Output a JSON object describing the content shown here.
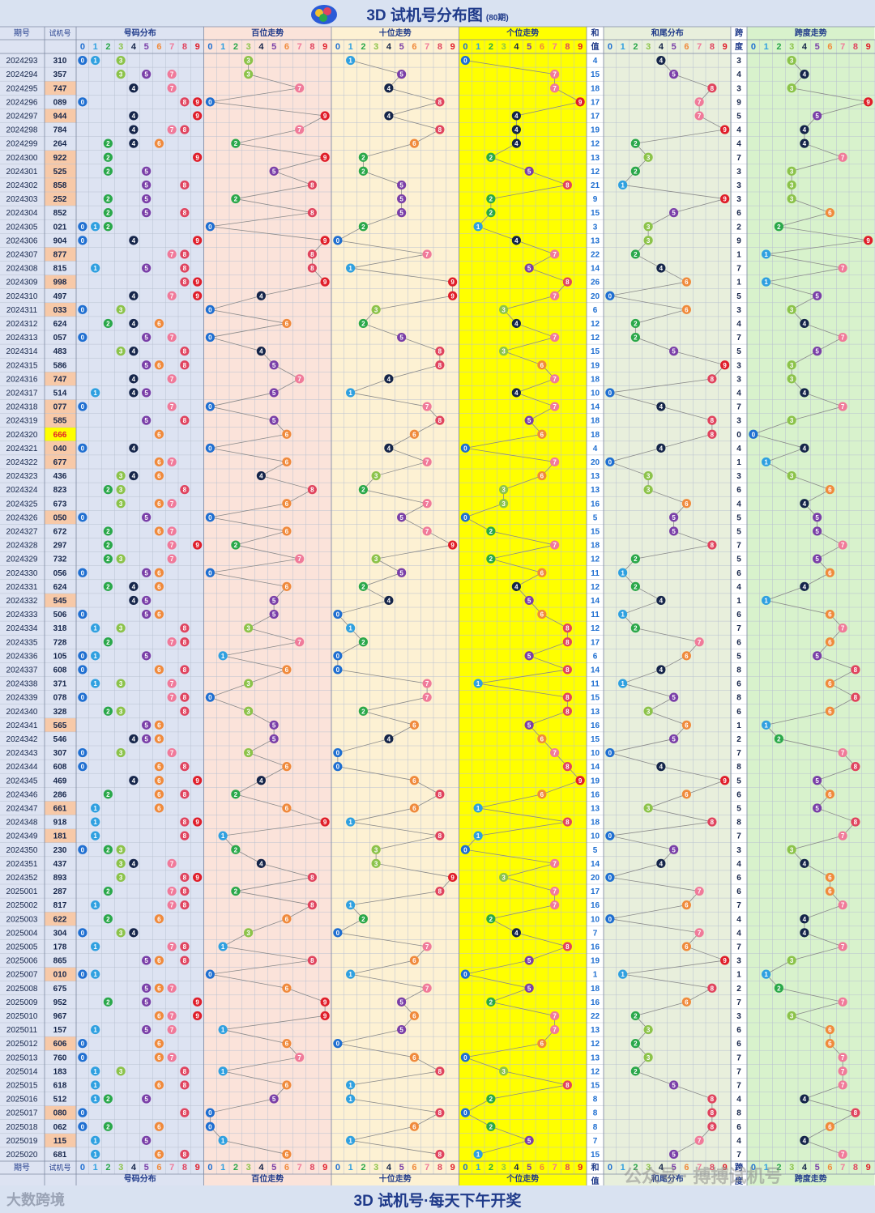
{
  "header": {
    "title": "3D 试机号分布图",
    "subtitle": "(80期)"
  },
  "footer": {
    "slogan": "3D 试机号·每天下午开奖",
    "brand": "大数跨境",
    "watermark": "公众号 · 搏搏试机号"
  },
  "columns": {
    "issue": "期号",
    "trial": "试机号",
    "distribution": "号码分布",
    "hundreds": "百位走势",
    "tens": "十位走势",
    "units": "个位走势",
    "sum_top": "和",
    "sum_bottom": "值",
    "sum_tail": "和尾分布",
    "span_top": "跨",
    "span_bottom": "度",
    "span_trend": "跨度走势"
  },
  "colors": {
    "d0": "#1f6fd1",
    "d1": "#2fa0e0",
    "d2": "#2aa84a",
    "d3": "#8cc34a",
    "d4": "#15254a",
    "d5": "#7a3fa8",
    "d6": "#f08a3c",
    "d7": "#f07a9a",
    "d8": "#e0445f",
    "d9": "#e01e2a",
    "bg_dist": "#dde3f2",
    "bg_h": "#fbe3da",
    "bg_t": "#fdf1d3",
    "bg_u": "#ffff00",
    "bg_sumtail": "#e8efdc",
    "bg_span": "#d8f2cc",
    "highlight": "#f7c9a8"
  },
  "chart_data": {
    "type": "table",
    "title": "3D 试机号分布图",
    "digits": [
      "0",
      "1",
      "2",
      "3",
      "4",
      "5",
      "6",
      "7",
      "8",
      "9"
    ],
    "rows": [
      {
        "issue": "2024293",
        "trial": "310",
        "sum": 4
      },
      {
        "issue": "2024294",
        "trial": "357",
        "sum": 15
      },
      {
        "issue": "2024295",
        "trial": "747",
        "sum": 18
      },
      {
        "issue": "2024296",
        "trial": "089",
        "sum": 17
      },
      {
        "issue": "2024297",
        "trial": "944",
        "sum": 17
      },
      {
        "issue": "2024298",
        "trial": "784",
        "sum": 19
      },
      {
        "issue": "2024299",
        "trial": "264",
        "sum": 12
      },
      {
        "issue": "2024300",
        "trial": "922",
        "sum": 13
      },
      {
        "issue": "2024301",
        "trial": "525",
        "sum": 12
      },
      {
        "issue": "2024302",
        "trial": "858",
        "sum": 21
      },
      {
        "issue": "2024303",
        "trial": "252",
        "sum": 9
      },
      {
        "issue": "2024304",
        "trial": "852",
        "sum": 15
      },
      {
        "issue": "2024305",
        "trial": "021",
        "sum": 3
      },
      {
        "issue": "2024306",
        "trial": "904",
        "sum": 13
      },
      {
        "issue": "2024307",
        "trial": "877",
        "sum": 22
      },
      {
        "issue": "2024308",
        "trial": "815",
        "sum": 14
      },
      {
        "issue": "2024309",
        "trial": "998",
        "sum": 26
      },
      {
        "issue": "2024310",
        "trial": "497",
        "sum": 20
      },
      {
        "issue": "2024311",
        "trial": "033",
        "sum": 6
      },
      {
        "issue": "2024312",
        "trial": "624",
        "sum": 12
      },
      {
        "issue": "2024313",
        "trial": "057",
        "sum": 12
      },
      {
        "issue": "2024314",
        "trial": "483",
        "sum": 15
      },
      {
        "issue": "2024315",
        "trial": "586",
        "sum": 19
      },
      {
        "issue": "2024316",
        "trial": "747",
        "sum": 18
      },
      {
        "issue": "2024317",
        "trial": "514",
        "sum": 10
      },
      {
        "issue": "2024318",
        "trial": "077",
        "sum": 14
      },
      {
        "issue": "2024319",
        "trial": "585",
        "sum": 18
      },
      {
        "issue": "2024320",
        "trial": "666",
        "sum": 18
      },
      {
        "issue": "2024321",
        "trial": "040",
        "sum": 4
      },
      {
        "issue": "2024322",
        "trial": "677",
        "sum": 20
      },
      {
        "issue": "2024323",
        "trial": "436",
        "sum": 13
      },
      {
        "issue": "2024324",
        "trial": "823",
        "sum": 13
      },
      {
        "issue": "2024325",
        "trial": "673",
        "sum": 16
      },
      {
        "issue": "2024326",
        "trial": "050",
        "sum": 5
      },
      {
        "issue": "2024327",
        "trial": "672",
        "sum": 15
      },
      {
        "issue": "2024328",
        "trial": "297",
        "sum": 18
      },
      {
        "issue": "2024329",
        "trial": "732",
        "sum": 12
      },
      {
        "issue": "2024330",
        "trial": "056",
        "sum": 11
      },
      {
        "issue": "2024331",
        "trial": "624",
        "sum": 12
      },
      {
        "issue": "2024332",
        "trial": "545",
        "sum": 14
      },
      {
        "issue": "2024333",
        "trial": "506",
        "sum": 11
      },
      {
        "issue": "2024334",
        "trial": "318",
        "sum": 12
      },
      {
        "issue": "2024335",
        "trial": "728",
        "sum": 17
      },
      {
        "issue": "2024336",
        "trial": "105",
        "sum": 6
      },
      {
        "issue": "2024337",
        "trial": "608",
        "sum": 14
      },
      {
        "issue": "2024338",
        "trial": "371",
        "sum": 11
      },
      {
        "issue": "2024339",
        "trial": "078",
        "sum": 15
      },
      {
        "issue": "2024340",
        "trial": "328",
        "sum": 13
      },
      {
        "issue": "2024341",
        "trial": "565",
        "sum": 16
      },
      {
        "issue": "2024342",
        "trial": "546",
        "sum": 15
      },
      {
        "issue": "2024343",
        "trial": "307",
        "sum": 10
      },
      {
        "issue": "2024344",
        "trial": "608",
        "sum": 14
      },
      {
        "issue": "2024345",
        "trial": "469",
        "sum": 19
      },
      {
        "issue": "2024346",
        "trial": "286",
        "sum": 16
      },
      {
        "issue": "2024347",
        "trial": "661",
        "sum": 13
      },
      {
        "issue": "2024348",
        "trial": "918",
        "sum": 18
      },
      {
        "issue": "2024349",
        "trial": "181",
        "sum": 10
      },
      {
        "issue": "2024350",
        "trial": "230",
        "sum": 5
      },
      {
        "issue": "2024351",
        "trial": "437",
        "sum": 14
      },
      {
        "issue": "2024352",
        "trial": "893",
        "sum": 20
      },
      {
        "issue": "2025001",
        "trial": "287",
        "sum": 17
      },
      {
        "issue": "2025002",
        "trial": "817",
        "sum": 16
      },
      {
        "issue": "2025003",
        "trial": "622",
        "sum": 10
      },
      {
        "issue": "2025004",
        "trial": "304",
        "sum": 7
      },
      {
        "issue": "2025005",
        "trial": "178",
        "sum": 16
      },
      {
        "issue": "2025006",
        "trial": "865",
        "sum": 19
      },
      {
        "issue": "2025007",
        "trial": "010",
        "sum": 1
      },
      {
        "issue": "2025008",
        "trial": "675",
        "sum": 18
      },
      {
        "issue": "2025009",
        "trial": "952",
        "sum": 16
      },
      {
        "issue": "2025010",
        "trial": "967",
        "sum": 22
      },
      {
        "issue": "2025011",
        "trial": "157",
        "sum": 13
      },
      {
        "issue": "2025012",
        "trial": "606",
        "sum": 12
      },
      {
        "issue": "2025013",
        "trial": "760",
        "sum": 13
      },
      {
        "issue": "2025014",
        "trial": "183",
        "sum": 12
      },
      {
        "issue": "2025015",
        "trial": "618",
        "sum": 15
      },
      {
        "issue": "2025016",
        "trial": "512",
        "sum": 8
      },
      {
        "issue": "2025017",
        "trial": "080",
        "sum": 8
      },
      {
        "issue": "2025018",
        "trial": "062",
        "sum": 8
      },
      {
        "issue": "2025019",
        "trial": "115",
        "sum": 7
      },
      {
        "issue": "2025020",
        "trial": "681",
        "sum": 15
      }
    ]
  }
}
